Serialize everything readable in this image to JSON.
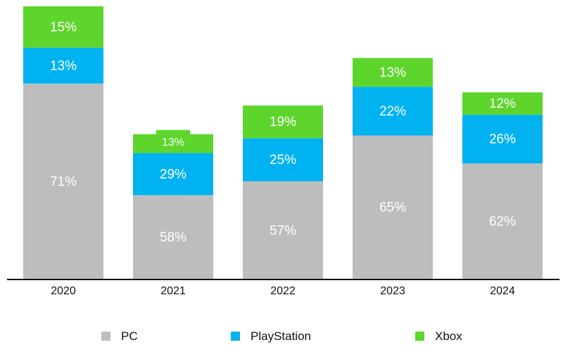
{
  "chart_data": {
    "type": "bar",
    "stacked": true,
    "title": "",
    "xlabel": "",
    "ylabel": "",
    "categories": [
      "2020",
      "2021",
      "2022",
      "2023",
      "2024"
    ],
    "series": [
      {
        "name": "PC",
        "color": "#bdbdbd",
        "values": [
          71,
          58,
          57,
          65,
          62
        ],
        "labels": [
          "71%",
          "58%",
          "57%",
          "65%",
          "62%"
        ]
      },
      {
        "name": "PlayStation",
        "color": "#00b2f0",
        "values": [
          13,
          29,
          25,
          22,
          26
        ],
        "labels": [
          "13%",
          "29%",
          "25%",
          "22%",
          "26%"
        ]
      },
      {
        "name": "Xbox",
        "color": "#5ed52c",
        "values": [
          15,
          13,
          19,
          13,
          12
        ],
        "labels": [
          "15%",
          "13%",
          "19%",
          "13%",
          "12%"
        ]
      }
    ],
    "relative_totals": [
      100,
      53.2,
      63.7,
      81.1,
      68.5
    ],
    "legend": {
      "position": "bottom",
      "items": [
        "PC",
        "PlayStation",
        "Xbox"
      ]
    },
    "grid": false
  }
}
